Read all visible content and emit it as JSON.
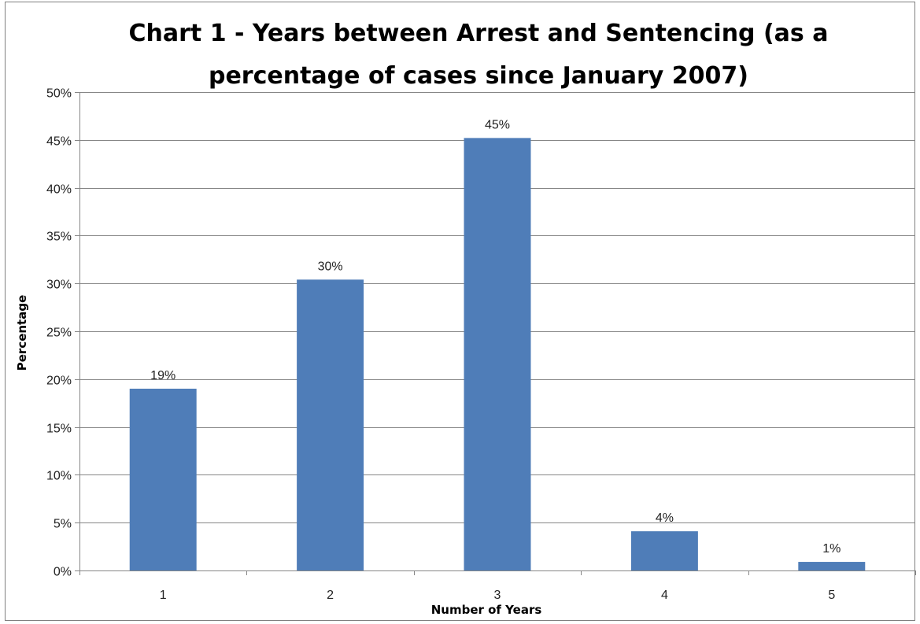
{
  "chart_data": {
    "type": "bar",
    "title": "Chart 1 - Years between Arrest and Sentencing (as a percentage of cases since January 2007)",
    "title_lines": [
      "Chart 1 - Years between Arrest and Sentencing (as a",
      "percentage of cases since January 2007)"
    ],
    "xlabel": "Number of Years",
    "ylabel": "Percentage",
    "categories": [
      "1",
      "2",
      "3",
      "4",
      "5"
    ],
    "values": [
      19,
      30.4,
      45.2,
      4.1,
      0.9
    ],
    "data_labels": [
      "19%",
      "30%",
      "45%",
      "4%",
      "1%"
    ],
    "ylim": [
      0,
      50
    ],
    "yticks": [
      0,
      5,
      10,
      15,
      20,
      25,
      30,
      35,
      40,
      45,
      50
    ],
    "ytick_labels": [
      "0%",
      "5%",
      "10%",
      "15%",
      "20%",
      "25%",
      "30%",
      "35%",
      "40%",
      "45%",
      "50%"
    ],
    "grid": true,
    "legend": "none",
    "bar_color": "#4f7db8",
    "gridline_color": "#868686"
  }
}
